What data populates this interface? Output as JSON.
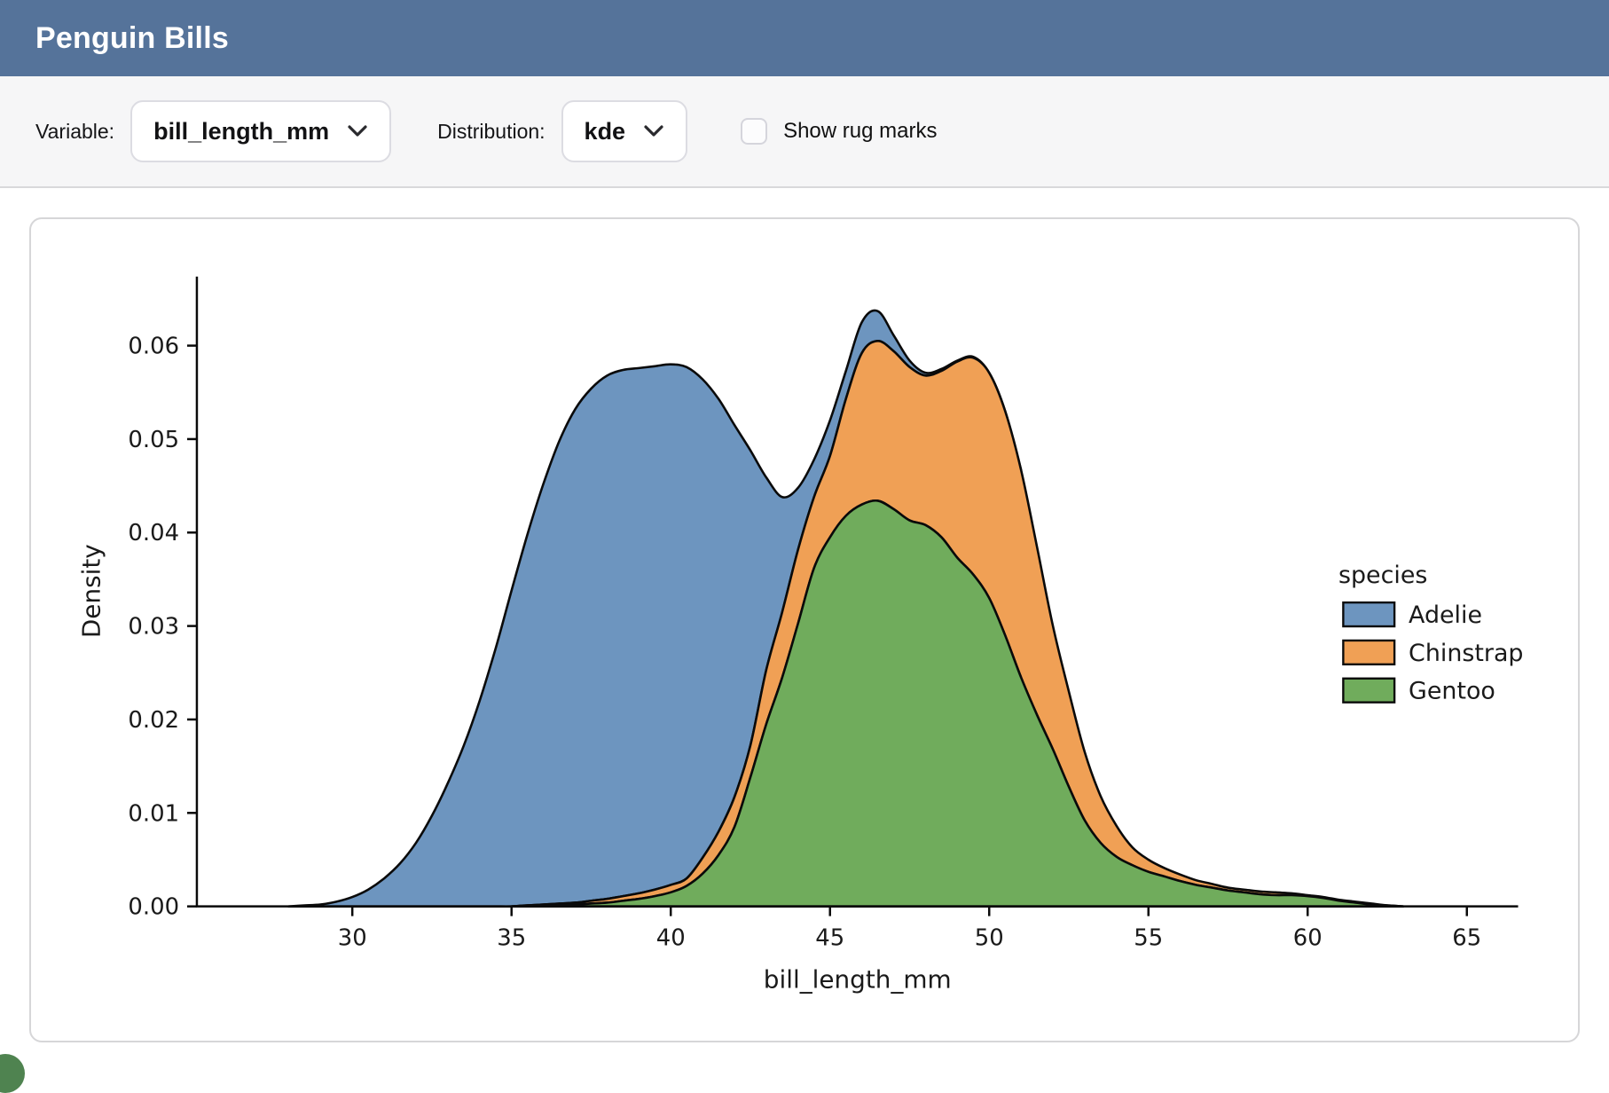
{
  "header": {
    "title": "Penguin Bills",
    "bg": "#55739a"
  },
  "toolbar": {
    "variable_label": "Variable:",
    "variable_value": "bill_length_mm",
    "distribution_label": "Distribution:",
    "distribution_value": "kde",
    "rug_label": "Show rug marks",
    "rug_checked": false
  },
  "chart_data": {
    "type": "area",
    "subtype": "stacked-kde",
    "title": "",
    "xlabel": "bill_length_mm",
    "ylabel": "Density",
    "xlim": [
      26.5,
      66.5
    ],
    "ylim": [
      0,
      0.067
    ],
    "xticks": [
      30,
      35,
      40,
      45,
      50,
      55,
      60,
      65
    ],
    "yticks": [
      0.0,
      0.01,
      0.02,
      0.03,
      0.04,
      0.05,
      0.06
    ],
    "grid": false,
    "legend": {
      "title": "species",
      "position": "center right"
    },
    "stack_order_bottom_to_top": [
      "Gentoo",
      "Chinstrap",
      "Adelie"
    ],
    "x": [
      28,
      28.5,
      29,
      29.5,
      30,
      30.5,
      31,
      31.5,
      32,
      32.5,
      33,
      33.5,
      34,
      34.5,
      35,
      35.5,
      36,
      36.5,
      37,
      37.5,
      38,
      38.5,
      39,
      39.5,
      40,
      40.5,
      41,
      41.5,
      42,
      42.5,
      43,
      43.5,
      44,
      44.5,
      45,
      45.5,
      46,
      46.5,
      47,
      47.5,
      48,
      48.5,
      49,
      49.5,
      50,
      50.5,
      51,
      51.5,
      52,
      52.5,
      53,
      53.5,
      54,
      54.5,
      55,
      55.5,
      56,
      56.5,
      57,
      57.5,
      58,
      58.5,
      59,
      59.5,
      60,
      60.5,
      61,
      61.5,
      62,
      62.5,
      63
    ],
    "values_scale": 0.0001,
    "series": [
      {
        "name": "Adelie",
        "color": "#6d95bf",
        "values": [
          0,
          1,
          2,
          5,
          10,
          18,
          30,
          46,
          68,
          97,
          132,
          172,
          220,
          276,
          338,
          397,
          450,
          495,
          528,
          548,
          560,
          563,
          562,
          560,
          557,
          547,
          512,
          463,
          398,
          316,
          206,
          123,
          66,
          40,
          38,
          30,
          33,
          32,
          17,
          7,
          3,
          2,
          1,
          1,
          0,
          0,
          0,
          0,
          0,
          0,
          0,
          0,
          0,
          0,
          0,
          0,
          0,
          0,
          0,
          0,
          0,
          0,
          0,
          0,
          0,
          0,
          0,
          0,
          0,
          0,
          0
        ]
      },
      {
        "name": "Chinstrap",
        "color": "#f0a055",
        "values": [
          0,
          0,
          0,
          0,
          0,
          0,
          0,
          0,
          0,
          0,
          0,
          0,
          0,
          0,
          0,
          0,
          1,
          1,
          2,
          3,
          4,
          5,
          6,
          7,
          8,
          8,
          17,
          25,
          32,
          34,
          58,
          70,
          79,
          76,
          87,
          125,
          162,
          171,
          169,
          164,
          160,
          178,
          210,
          232,
          241,
          240,
          222,
          180,
          132,
          102,
          73,
          50,
          33,
          19,
          13,
          9,
          7,
          5,
          4,
          3,
          3,
          3,
          3,
          2,
          1,
          1,
          1,
          1,
          1,
          0,
          0
        ]
      },
      {
        "name": "Gentoo",
        "color": "#70ac5c",
        "values": [
          0,
          0,
          0,
          0,
          0,
          0,
          0,
          0,
          0,
          0,
          0,
          0,
          0,
          0,
          0,
          1,
          1,
          2,
          2,
          3,
          4,
          6,
          8,
          11,
          15,
          22,
          35,
          55,
          85,
          138,
          195,
          245,
          303,
          362,
          395,
          418,
          430,
          434,
          425,
          413,
          408,
          395,
          373,
          355,
          330,
          290,
          245,
          205,
          168,
          128,
          92,
          68,
          53,
          44,
          37,
          32,
          27,
          23,
          20,
          17,
          15,
          13,
          12,
          12,
          11,
          9,
          6,
          4,
          2,
          1,
          0
        ]
      }
    ]
  }
}
